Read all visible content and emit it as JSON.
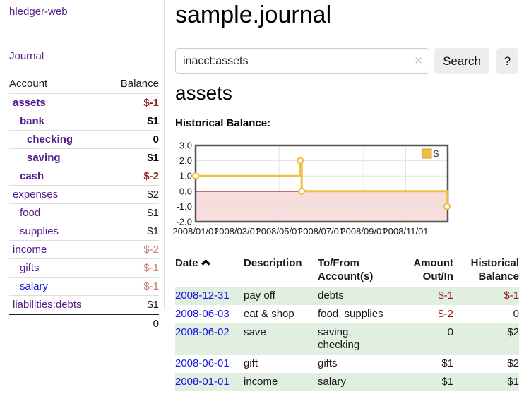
{
  "colors": {
    "link_purple": "#551a8b",
    "link_blue": "#1414e0",
    "negative_strong": "#8f1d1d",
    "negative_dim": "#c17d7d",
    "row_green": "#e0efe0",
    "series_gold": "#edc240",
    "negative_region_pink": "#f9dcdc",
    "zero_line_red": "#8b0000",
    "grid_gray": "#e3e3e3",
    "plot_border": "#545454",
    "button_bg": "#ededed"
  },
  "sidebar": {
    "brand": "hledger-web",
    "nav_journal": "Journal",
    "header": {
      "account": "Account",
      "balance": "Balance"
    },
    "accounts": [
      {
        "name": "assets",
        "depth": 1,
        "bold": true,
        "link_tone": "purple",
        "balance": "$-1",
        "balance_tone": "neg-strong"
      },
      {
        "name": "bank",
        "depth": 2,
        "bold": true,
        "link_tone": "purple",
        "balance": "$1",
        "balance_tone": "bold"
      },
      {
        "name": "checking",
        "depth": 3,
        "bold": true,
        "link_tone": "purple",
        "balance": "0",
        "balance_tone": "bold"
      },
      {
        "name": "saving",
        "depth": 3,
        "bold": true,
        "link_tone": "purple",
        "balance": "$1",
        "balance_tone": "bold"
      },
      {
        "name": "cash",
        "depth": 2,
        "bold": true,
        "link_tone": "purple",
        "balance": "$-2",
        "balance_tone": "neg-strong"
      },
      {
        "name": "expenses",
        "depth": 1,
        "bold": false,
        "link_tone": "purple",
        "balance": "$2",
        "balance_tone": "plain"
      },
      {
        "name": "food",
        "depth": 2,
        "bold": false,
        "link_tone": "purple",
        "balance": "$1",
        "balance_tone": "plain"
      },
      {
        "name": "supplies",
        "depth": 2,
        "bold": false,
        "link_tone": "purple",
        "balance": "$1",
        "balance_tone": "plain"
      },
      {
        "name": "income",
        "depth": 1,
        "bold": false,
        "link_tone": "purple",
        "balance": "$-2",
        "balance_tone": "neg-dim"
      },
      {
        "name": "gifts",
        "depth": 2,
        "bold": false,
        "link_tone": "purple",
        "balance": "$-1",
        "balance_tone": "neg-dim"
      },
      {
        "name": "salary",
        "depth": 2,
        "bold": false,
        "link_tone": "blue",
        "balance": "$-1",
        "balance_tone": "neg-dim"
      },
      {
        "name": "liabilities:debts",
        "depth": 1,
        "bold": false,
        "link_tone": "purple",
        "balance": "$1",
        "balance_tone": "plain"
      }
    ],
    "total": "0"
  },
  "header": {
    "title": "sample.journal"
  },
  "search": {
    "value": "inacct:assets",
    "clear_icon": "✕",
    "button_label": "Search",
    "help_label": "?"
  },
  "account_page": {
    "heading": "assets",
    "chart_label": "Historical Balance:"
  },
  "chart_data": {
    "type": "line",
    "step": true,
    "title": "Historical Balance",
    "legend": "$",
    "legend_position": "top-right",
    "grid": true,
    "ylim": [
      -2.0,
      3.0
    ],
    "y_ticks": [
      "3.0",
      "2.0",
      "1.0",
      "0.0",
      "-1.0",
      "-2.0"
    ],
    "y_tick_values": [
      3,
      2,
      1,
      0,
      -1,
      -2
    ],
    "x_ticks": [
      "2008/01/01",
      "2008/03/01",
      "2008/05/01",
      "2008/07/01",
      "2008/09/01",
      "2008/11/01"
    ],
    "x_range": [
      "2008-01-01",
      "2008-12-31"
    ],
    "series": [
      {
        "name": "$",
        "color": "#edc240",
        "points": [
          [
            "2008-01-01",
            1
          ],
          [
            "2008-06-01",
            2
          ],
          [
            "2008-06-03",
            0
          ],
          [
            "2008-12-31",
            -1
          ]
        ]
      }
    ]
  },
  "register": {
    "columns": [
      {
        "label": "Date",
        "sort": "asc",
        "align": "left"
      },
      {
        "label": "Description",
        "align": "left"
      },
      {
        "label": "To/From\nAccount(s)",
        "align": "left"
      },
      {
        "label": "Amount\nOut/In",
        "align": "right"
      },
      {
        "label": "Historical\nBalance",
        "align": "right"
      }
    ],
    "rows": [
      {
        "date": "2008-12-31",
        "description": "pay off",
        "accounts": "debts",
        "amount": "$-1",
        "amount_tone": "negative",
        "balance": "$-1",
        "balance_tone": "negative"
      },
      {
        "date": "2008-06-03",
        "description": "eat & shop",
        "accounts": "food, supplies",
        "amount": "$-2",
        "amount_tone": "negative",
        "balance": "0",
        "balance_tone": "normal"
      },
      {
        "date": "2008-06-02",
        "description": "save",
        "accounts": "saving,\nchecking",
        "amount": "0",
        "amount_tone": "normal",
        "balance": "$2",
        "balance_tone": "normal"
      },
      {
        "date": "2008-06-01",
        "description": "gift",
        "accounts": "gifts",
        "amount": "$1",
        "amount_tone": "normal",
        "balance": "$2",
        "balance_tone": "normal"
      },
      {
        "date": "2008-01-01",
        "description": "income",
        "accounts": "salary",
        "amount": "$1",
        "amount_tone": "normal",
        "balance": "$1",
        "balance_tone": "normal"
      }
    ]
  }
}
